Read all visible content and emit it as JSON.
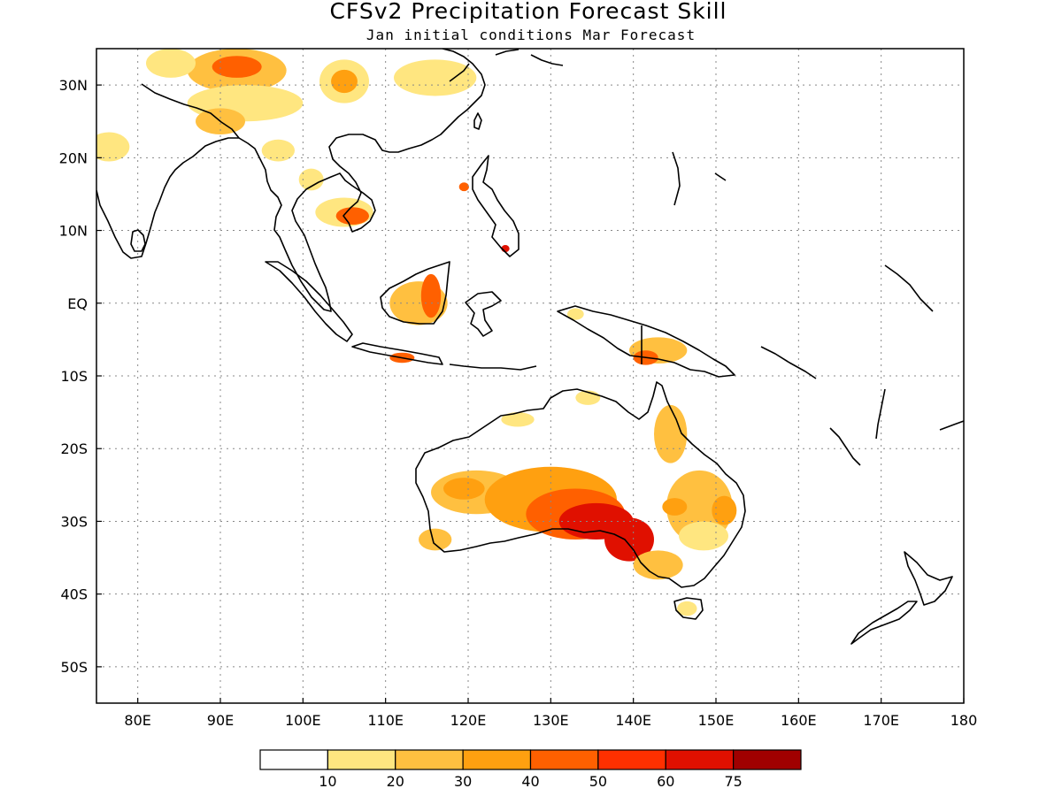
{
  "title": "CFSv2 Precipitation Forecast Skill",
  "subtitle": "Jan initial conditions  Mar Forecast",
  "map": {
    "lon_range": [
      75,
      180
    ],
    "lat_range": [
      -55,
      35
    ],
    "grid": true,
    "lon_ticks": [
      {
        "value": 80,
        "label": "80E"
      },
      {
        "value": 90,
        "label": "90E"
      },
      {
        "value": 100,
        "label": "100E"
      },
      {
        "value": 110,
        "label": "110E"
      },
      {
        "value": 120,
        "label": "120E"
      },
      {
        "value": 130,
        "label": "130E"
      },
      {
        "value": 140,
        "label": "140E"
      },
      {
        "value": 150,
        "label": "150E"
      },
      {
        "value": 160,
        "label": "160E"
      },
      {
        "value": 170,
        "label": "170E"
      },
      {
        "value": 180,
        "label": "180"
      }
    ],
    "lat_ticks": [
      {
        "value": 30,
        "label": "30N"
      },
      {
        "value": 20,
        "label": "20N"
      },
      {
        "value": 10,
        "label": "10N"
      },
      {
        "value": 0,
        "label": "EQ"
      },
      {
        "value": -10,
        "label": "10S"
      },
      {
        "value": -20,
        "label": "20S"
      },
      {
        "value": -30,
        "label": "30S"
      },
      {
        "value": -40,
        "label": "40S"
      },
      {
        "value": -50,
        "label": "50S"
      }
    ]
  },
  "colorbar": {
    "colors": [
      "#ffffff",
      "#ffe680",
      "#ffc040",
      "#ffa010",
      "#ff6000",
      "#ff3000",
      "#e01000",
      "#a00000"
    ],
    "labels": [
      "10",
      "20",
      "30",
      "40",
      "50",
      "60",
      "75"
    ]
  },
  "skill_regions": [
    {
      "lon": 92,
      "lat": 32,
      "rx": 6,
      "ry": 3,
      "level": 2
    },
    {
      "lon": 92,
      "lat": 32.5,
      "rx": 3,
      "ry": 1.5,
      "level": 4
    },
    {
      "lon": 84,
      "lat": 33,
      "rx": 3,
      "ry": 2,
      "level": 1
    },
    {
      "lon": 105,
      "lat": 30.5,
      "rx": 3,
      "ry": 3,
      "level": 1
    },
    {
      "lon": 105,
      "lat": 30.5,
      "rx": 1.6,
      "ry": 1.6,
      "level": 3
    },
    {
      "lon": 116,
      "lat": 31,
      "rx": 5,
      "ry": 2.5,
      "level": 1
    },
    {
      "lon": 93,
      "lat": 27.5,
      "rx": 7,
      "ry": 2.5,
      "level": 1
    },
    {
      "lon": 90,
      "lat": 25,
      "rx": 3,
      "ry": 1.8,
      "level": 2
    },
    {
      "lon": 76.5,
      "lat": 21.5,
      "rx": 2.5,
      "ry": 2,
      "level": 1
    },
    {
      "lon": 97,
      "lat": 21,
      "rx": 2,
      "ry": 1.5,
      "level": 1
    },
    {
      "lon": 105,
      "lat": 12.5,
      "rx": 3.5,
      "ry": 2,
      "level": 1
    },
    {
      "lon": 106,
      "lat": 12,
      "rx": 2,
      "ry": 1.2,
      "level": 4
    },
    {
      "lon": 101,
      "lat": 17,
      "rx": 1.5,
      "ry": 1.5,
      "level": 1
    },
    {
      "lon": 114,
      "lat": 0,
      "rx": 3.5,
      "ry": 3,
      "level": 2
    },
    {
      "lon": 115.5,
      "lat": 1,
      "rx": 1.2,
      "ry": 3,
      "level": 4
    },
    {
      "lon": 112,
      "lat": -7.5,
      "rx": 1.5,
      "ry": 0.7,
      "level": 4
    },
    {
      "lon": 143,
      "lat": -6.5,
      "rx": 3.5,
      "ry": 1.8,
      "level": 2
    },
    {
      "lon": 141.5,
      "lat": -7.5,
      "rx": 1.5,
      "ry": 1,
      "level": 4
    },
    {
      "lon": 133,
      "lat": -1.5,
      "rx": 1,
      "ry": 0.8,
      "level": 1
    },
    {
      "lon": 119.5,
      "lat": 16,
      "rx": 0.6,
      "ry": 0.6,
      "level": 4
    },
    {
      "lon": 124.5,
      "lat": 7.5,
      "rx": 0.5,
      "ry": 0.5,
      "level": 6
    },
    {
      "lon": 144.5,
      "lat": -18,
      "rx": 2,
      "ry": 4,
      "level": 2
    },
    {
      "lon": 126,
      "lat": -16,
      "rx": 2,
      "ry": 1,
      "level": 1
    },
    {
      "lon": 134.5,
      "lat": -13,
      "rx": 1.5,
      "ry": 1,
      "level": 1
    },
    {
      "lon": 121,
      "lat": -26,
      "rx": 5.5,
      "ry": 3,
      "level": 2
    },
    {
      "lon": 119.5,
      "lat": -25.5,
      "rx": 2.5,
      "ry": 1.5,
      "level": 3
    },
    {
      "lon": 130,
      "lat": -27,
      "rx": 8,
      "ry": 4.5,
      "level": 3
    },
    {
      "lon": 133,
      "lat": -29,
      "rx": 6,
      "ry": 3.5,
      "level": 4
    },
    {
      "lon": 135.5,
      "lat": -30,
      "rx": 4.5,
      "ry": 2.5,
      "level": 6
    },
    {
      "lon": 139.5,
      "lat": -32.5,
      "rx": 3,
      "ry": 3,
      "level": 6
    },
    {
      "lon": 148,
      "lat": -28,
      "rx": 4,
      "ry": 5,
      "level": 2
    },
    {
      "lon": 151,
      "lat": -28.5,
      "rx": 1.5,
      "ry": 2,
      "level": 3
    },
    {
      "lon": 145,
      "lat": -28,
      "rx": 1.5,
      "ry": 1.2,
      "level": 3
    },
    {
      "lon": 116,
      "lat": -32.5,
      "rx": 2,
      "ry": 1.5,
      "level": 2
    },
    {
      "lon": 143,
      "lat": -36,
      "rx": 3,
      "ry": 2,
      "level": 2
    },
    {
      "lon": 148.5,
      "lat": -32,
      "rx": 3,
      "ry": 2,
      "level": 1
    },
    {
      "lon": 146.5,
      "lat": -42,
      "rx": 1.2,
      "ry": 1,
      "level": 1
    }
  ]
}
